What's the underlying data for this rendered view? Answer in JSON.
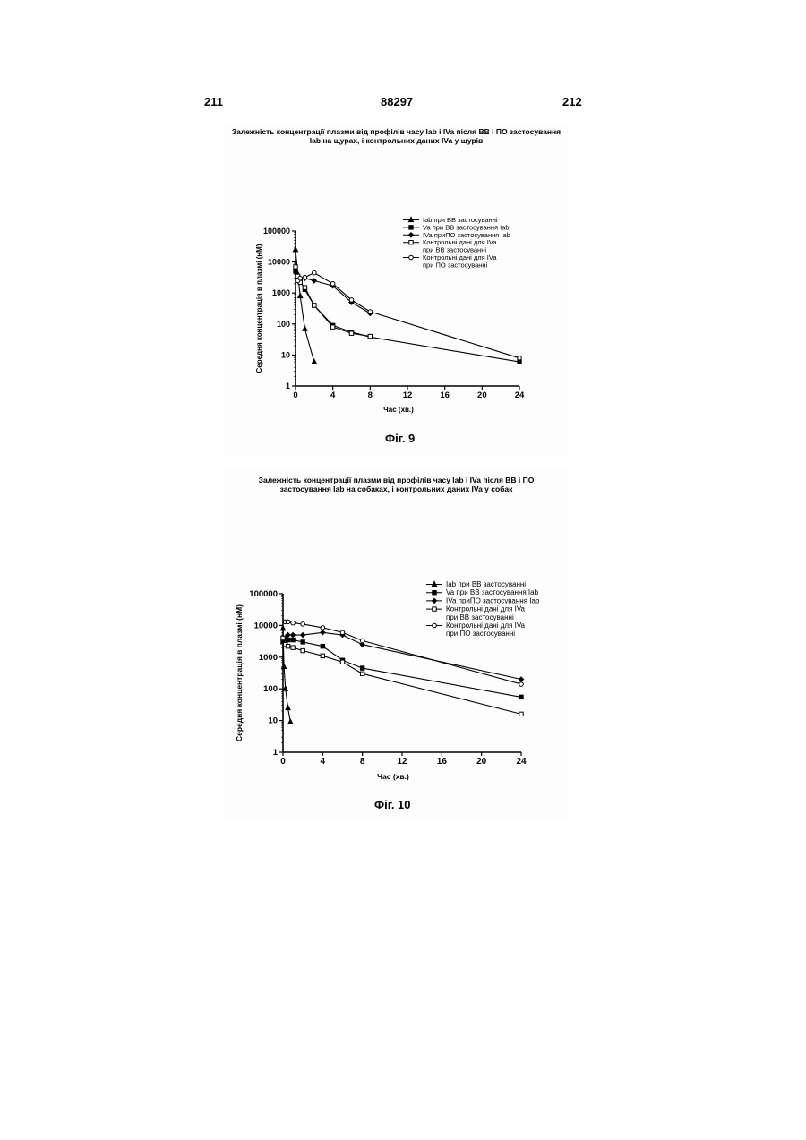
{
  "header": {
    "left_page": "211",
    "center_number": "88297",
    "right_page": "212"
  },
  "figures": [
    {
      "title_line1": "Залежність концентрації плазми від профілів часу Iab і IVa після ВВ і ПО застосування",
      "title_line2": "Iab на щурах, і контрольних даних IVa у щурів",
      "label": "Фіг. 9"
    },
    {
      "title_line1": "Залежність концентрації плазми від профілів часу Iab і IVa після ВВ і ПО",
      "title_line2": "застосування Iab на собаках, і контрольних даних IVa у собак",
      "label": "Фіг. 10"
    }
  ],
  "chart_data": [
    {
      "type": "line",
      "xlabel": "Час (хв.)",
      "ylabel": "Середня концентрація в плазмі (нМ)",
      "x_ticks": [
        0,
        4,
        8,
        12,
        16,
        20,
        24
      ],
      "y_ticks": [
        1,
        10,
        100,
        1000,
        10000,
        100000
      ],
      "y_tick_labels": [
        "1",
        "10",
        "100",
        "1000",
        "10000",
        "100000"
      ],
      "xlim": [
        0,
        24
      ],
      "ylim": [
        1,
        100000
      ],
      "y_scale": "log",
      "legend_position": "top-right",
      "series": [
        {
          "name": "Iab при ВВ застосуванні",
          "marker": "triangle-filled",
          "x": [
            0,
            0.25,
            0.5,
            1,
            2
          ],
          "y": [
            25000,
            4000,
            800,
            70,
            6
          ]
        },
        {
          "name": "Va при ВВ застосування Iab",
          "marker": "square-filled",
          "x": [
            0,
            0.25,
            0.5,
            1,
            2,
            4,
            6,
            8,
            24
          ],
          "y": [
            5000,
            3000,
            2500,
            1300,
            400,
            90,
            55,
            38,
            6
          ]
        },
        {
          "name": "IVa приПО застосування Iab",
          "marker": "diamond-filled",
          "x": [
            0.25,
            0.5,
            1,
            2,
            4,
            6,
            8
          ],
          "y": [
            2500,
            3000,
            3000,
            2500,
            1700,
            500,
            220
          ]
        },
        {
          "name": "Контрольні дані для IVa",
          "name_line2": "при ВВ застосуванні",
          "marker": "square-open",
          "x": [
            0,
            0.25,
            0.5,
            1,
            2,
            4,
            6,
            8
          ],
          "y": [
            7000,
            3500,
            2200,
            1500,
            400,
            80,
            50,
            40
          ]
        },
        {
          "name": "Контрольні дані для IVa",
          "name_line2": "при ПО застосуванні",
          "marker": "circle-open",
          "x": [
            0.25,
            0.5,
            1,
            2,
            4,
            6,
            8,
            24
          ],
          "y": [
            2500,
            3000,
            3200,
            4500,
            2000,
            600,
            250,
            8
          ]
        }
      ]
    },
    {
      "type": "line",
      "xlabel": "Час (хв.)",
      "ylabel": "Середня концентрація в плазмі (нМ)",
      "x_ticks": [
        0,
        4,
        8,
        12,
        16,
        20,
        24
      ],
      "y_ticks": [
        1,
        10,
        100,
        1000,
        10000,
        100000
      ],
      "y_tick_labels": [
        "1",
        "10",
        "100",
        "1000",
        "10000",
        "100000"
      ],
      "xlim": [
        0,
        24
      ],
      "ylim": [
        1,
        100000
      ],
      "y_scale": "log",
      "legend_position": "top-right",
      "series": [
        {
          "name": "Iab при ВВ застосуванні",
          "marker": "triangle-filled",
          "x": [
            0,
            0.1,
            0.25,
            0.5,
            0.75
          ],
          "y": [
            8000,
            500,
            100,
            25,
            9
          ]
        },
        {
          "name": "Va при ВВ застосування Iab",
          "marker": "square-filled",
          "x": [
            0,
            0.25,
            0.5,
            1,
            2,
            4,
            6,
            8,
            24
          ],
          "y": [
            3000,
            4000,
            3500,
            3500,
            3000,
            2200,
            800,
            450,
            55
          ]
        },
        {
          "name": "IVa приПО застосування Iab",
          "marker": "diamond-filled",
          "x": [
            0.25,
            0.5,
            1,
            2,
            4,
            6,
            8,
            24
          ],
          "y": [
            4000,
            5000,
            5000,
            5000,
            6000,
            5000,
            2500,
            200
          ]
        },
        {
          "name": "Контрольні дані для IVa",
          "name_line2": "при ВВ застосуванні",
          "marker": "square-open",
          "x": [
            0,
            0.25,
            0.5,
            1,
            2,
            4,
            6,
            8,
            24
          ],
          "y": [
            4000,
            2500,
            2200,
            2000,
            1600,
            1100,
            700,
            300,
            16
          ]
        },
        {
          "name": "Контрольні дані для IVa",
          "name_line2": "при ПО застосуванні",
          "marker": "circle-open",
          "x": [
            0.25,
            0.5,
            1,
            2,
            4,
            6,
            8,
            24
          ],
          "y": [
            13000,
            13000,
            12000,
            11000,
            8500,
            6000,
            3300,
            140
          ]
        }
      ]
    }
  ]
}
